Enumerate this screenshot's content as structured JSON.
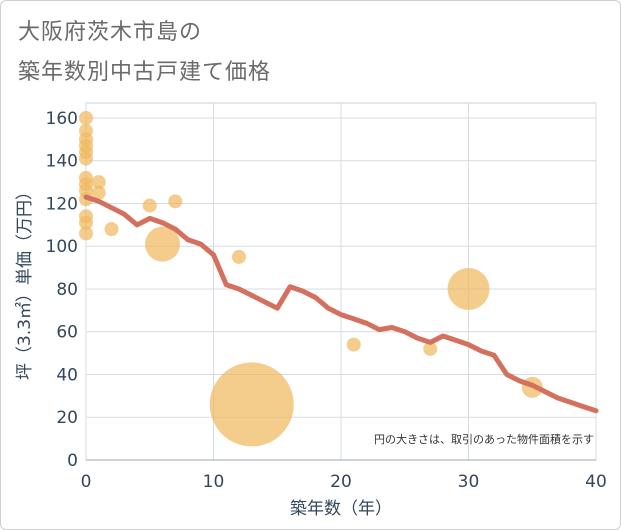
{
  "title_line1": "大阪府茨木市島の",
  "title_line2": "築年数別中古戸建て価格",
  "chart_data": {
    "type": "scatter",
    "title": "大阪府茨木市島の 築年数別中古戸建て価格",
    "xlabel": "築年数（年）",
    "ylabel": "坪（3.3㎡）単価（万円）",
    "xlim": [
      0,
      40
    ],
    "ylim": [
      0,
      167
    ],
    "xticks": [
      0,
      10,
      20,
      30,
      40
    ],
    "yticks": [
      0,
      20,
      40,
      60,
      80,
      100,
      120,
      140,
      160
    ],
    "grid": true,
    "note": "円の大きさは、取引のあった物件面積を示す",
    "colors": {
      "points": "#f0b860",
      "trend": "#d4705e",
      "grid": "#d5dce6",
      "tick": "#33475b"
    },
    "points": [
      {
        "x": 0,
        "y": 160,
        "r": 1
      },
      {
        "x": 0,
        "y": 154,
        "r": 1
      },
      {
        "x": 0,
        "y": 150,
        "r": 1
      },
      {
        "x": 0,
        "y": 147,
        "r": 1
      },
      {
        "x": 0,
        "y": 144,
        "r": 1
      },
      {
        "x": 0,
        "y": 141,
        "r": 1
      },
      {
        "x": 0,
        "y": 132,
        "r": 1
      },
      {
        "x": 0,
        "y": 129,
        "r": 1
      },
      {
        "x": 0,
        "y": 126,
        "r": 1
      },
      {
        "x": 0,
        "y": 122,
        "r": 1
      },
      {
        "x": 0,
        "y": 114,
        "r": 1
      },
      {
        "x": 0,
        "y": 111,
        "r": 1
      },
      {
        "x": 0,
        "y": 106,
        "r": 1
      },
      {
        "x": 1,
        "y": 130,
        "r": 1
      },
      {
        "x": 1,
        "y": 125,
        "r": 1
      },
      {
        "x": 2,
        "y": 108,
        "r": 1
      },
      {
        "x": 5,
        "y": 119,
        "r": 1
      },
      {
        "x": 6,
        "y": 101,
        "r": 2.5
      },
      {
        "x": 7,
        "y": 121,
        "r": 1
      },
      {
        "x": 12,
        "y": 95,
        "r": 1
      },
      {
        "x": 13,
        "y": 26,
        "r": 6
      },
      {
        "x": 21,
        "y": 54,
        "r": 1
      },
      {
        "x": 27,
        "y": 52,
        "r": 1
      },
      {
        "x": 30,
        "y": 80,
        "r": 3
      },
      {
        "x": 35,
        "y": 34,
        "r": 1.5
      }
    ],
    "trend": {
      "name": "trend",
      "x": [
        0,
        1,
        2,
        3,
        4,
        5,
        6,
        7,
        8,
        9,
        10,
        11,
        12,
        13,
        14,
        15,
        16,
        17,
        18,
        19,
        20,
        21,
        22,
        23,
        24,
        25,
        26,
        27,
        28,
        29,
        30,
        31,
        32,
        33,
        34,
        35,
        36,
        37,
        38,
        39,
        40
      ],
      "y": [
        123,
        121,
        118,
        115,
        110,
        113,
        111,
        108,
        103,
        101,
        96,
        82,
        80,
        77,
        74,
        71,
        81,
        79,
        76,
        71,
        68,
        66,
        64,
        61,
        62,
        60,
        57,
        55,
        58,
        56,
        54,
        51,
        49,
        40,
        37,
        35,
        32,
        29,
        27,
        25,
        23
      ]
    }
  }
}
